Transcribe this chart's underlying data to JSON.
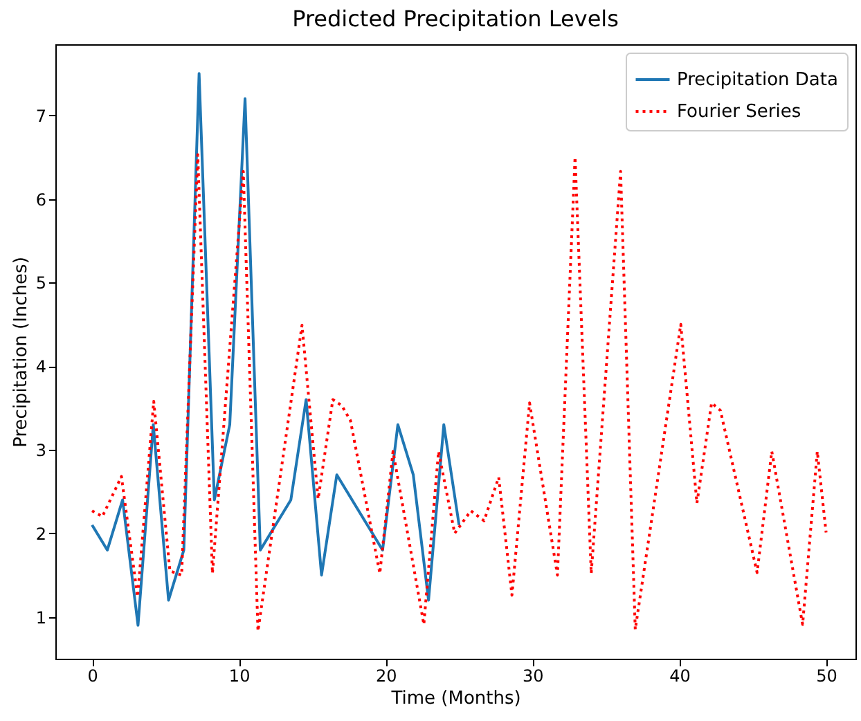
{
  "chart_data": {
    "type": "line",
    "title": "Predicted Precipitation Levels",
    "xlabel": "Time (Months)",
    "ylabel": "Precipitation (Inches)",
    "xlim": [
      -2.5,
      52
    ],
    "ylim": [
      0.5,
      7.85
    ],
    "xticks": [
      0,
      10,
      20,
      30,
      40,
      50
    ],
    "yticks": [
      1,
      2,
      3,
      4,
      5,
      6,
      7
    ],
    "grid": false,
    "legend": "top right",
    "series": [
      {
        "name": "Precipitation Data",
        "color": "#1f77b4",
        "line_style": "solid",
        "x": [
          0,
          1.04,
          2.08,
          3.13,
          4.17,
          5.21,
          6.25,
          7.29,
          8.33,
          9.38,
          10.42,
          11.46,
          12.5,
          13.54,
          14.58,
          15.63,
          16.67,
          17.71,
          18.75,
          19.79,
          20.83,
          21.88,
          22.92,
          23.96,
          25
        ],
        "values": [
          2.1,
          1.8,
          2.4,
          0.9,
          3.3,
          1.2,
          1.8,
          7.5,
          2.4,
          3.3,
          7.2,
          1.8,
          2.1,
          2.4,
          3.6,
          1.5,
          2.7,
          2.4,
          2.1,
          1.8,
          3.3,
          2.7,
          1.2,
          3.3,
          2.1
        ]
      },
      {
        "name": "Fourier Series",
        "color": "#ff0000",
        "line_style": "dotted",
        "x": [
          0,
          0.7,
          2.0,
          3.1,
          4.2,
          5.3,
          6.1,
          7.2,
          8.2,
          10.3,
          11.3,
          14.3,
          15.4,
          16.4,
          17.0,
          17.6,
          19.6,
          20.5,
          22.6,
          23.6,
          24.7,
          25.8,
          26.7,
          27.7,
          28.6,
          29.8,
          31.7,
          32.9,
          34.0,
          36.0,
          37.0,
          40.1,
          41.2,
          42.2,
          42.8,
          45.3,
          46.3,
          48.4,
          49.4,
          50
        ],
        "values": [
          2.27,
          2.2,
          2.68,
          1.24,
          3.58,
          1.55,
          1.5,
          6.53,
          1.52,
          6.33,
          0.83,
          4.49,
          2.41,
          3.6,
          3.53,
          3.35,
          1.52,
          2.98,
          0.91,
          2.98,
          2.0,
          2.27,
          2.15,
          2.67,
          1.26,
          3.56,
          1.5,
          6.5,
          1.52,
          6.33,
          0.85,
          4.5,
          2.36,
          3.56,
          3.47,
          1.53,
          2.98,
          0.91,
          2.98,
          2.01
        ]
      }
    ]
  }
}
